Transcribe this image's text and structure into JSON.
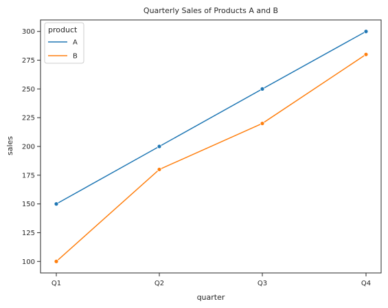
{
  "chart_data": {
    "type": "line",
    "title": "Quarterly Sales of Products A and B",
    "xlabel": "quarter",
    "ylabel": "sales",
    "categories": [
      "Q1",
      "Q2",
      "Q3",
      "Q4"
    ],
    "ylim": [
      90,
      310
    ],
    "yticks": [
      100,
      125,
      150,
      175,
      200,
      225,
      250,
      275,
      300
    ],
    "grid": false,
    "markers": true,
    "legend": {
      "title": "product",
      "placement": "top-left"
    },
    "series": [
      {
        "name": "A",
        "color": "#1f77b4",
        "values": [
          150,
          200,
          250,
          300
        ]
      },
      {
        "name": "B",
        "color": "#ff7f0e",
        "values": [
          100,
          180,
          220,
          280
        ]
      }
    ]
  }
}
